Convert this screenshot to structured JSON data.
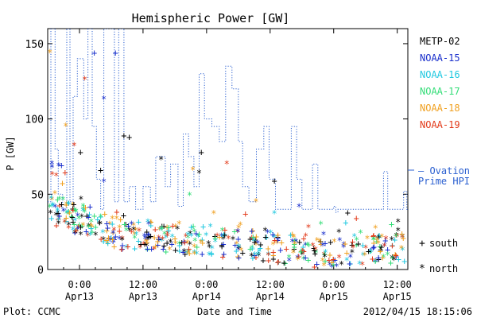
{
  "chart_data": {
    "type": "scatter",
    "title": "Hemispheric Power [GW]",
    "ylabel": "P [GW]",
    "xlabel": "Date and Time",
    "ylim": [
      0,
      160
    ],
    "yticks": [
      0,
      50,
      100,
      150
    ],
    "xlim_hours": [
      -6,
      62
    ],
    "xticks": [
      {
        "t": 0,
        "line1": "0:00",
        "line2": "Apr13"
      },
      {
        "t": 12,
        "line1": "12:00",
        "line2": "Apr13"
      },
      {
        "t": 24,
        "line1": "0:00",
        "line2": "Apr14"
      },
      {
        "t": 36,
        "line1": "12:00",
        "line2": "Apr14"
      },
      {
        "t": 48,
        "line1": "0:00",
        "line2": "Apr15"
      },
      {
        "t": 60,
        "line1": "12:00",
        "line2": "Apr15"
      }
    ],
    "series": [
      {
        "name": "METP-02",
        "color": "#000000"
      },
      {
        "name": "NOAA-15",
        "color": "#1a2fcc"
      },
      {
        "name": "NOAA-16",
        "color": "#20c8e0"
      },
      {
        "name": "NOAA-17",
        "color": "#33dd77"
      },
      {
        "name": "NOAA-18",
        "color": "#f0a020"
      },
      {
        "name": "NOAA-19",
        "color": "#e23a1a"
      }
    ],
    "ovation": {
      "label_line1": "— Ovation",
      "label_line2": "Prime HPI",
      "color": "#2a5fd0",
      "points": [
        [
          -6,
          45
        ],
        [
          -5.4,
          45
        ],
        [
          -5.4,
          160
        ],
        [
          -4.6,
          160
        ],
        [
          -4.6,
          80
        ],
        [
          -4,
          80
        ],
        [
          -4,
          50
        ],
        [
          -3.2,
          50
        ],
        [
          -3.2,
          40
        ],
        [
          -2.4,
          40
        ],
        [
          -2.4,
          160
        ],
        [
          -1.8,
          160
        ],
        [
          -1.8,
          45
        ],
        [
          -1.2,
          45
        ],
        [
          -1.2,
          115
        ],
        [
          -0.4,
          115
        ],
        [
          -0.4,
          140
        ],
        [
          0.8,
          140
        ],
        [
          0.8,
          100
        ],
        [
          1.6,
          100
        ],
        [
          1.6,
          160
        ],
        [
          2.4,
          160
        ],
        [
          2.4,
          95
        ],
        [
          3.2,
          95
        ],
        [
          3.2,
          60
        ],
        [
          4,
          60
        ],
        [
          4,
          40
        ],
        [
          4.6,
          40
        ],
        [
          4.6,
          160
        ],
        [
          6.6,
          160
        ],
        [
          6.6,
          45
        ],
        [
          7.4,
          45
        ],
        [
          7.4,
          160
        ],
        [
          8.4,
          160
        ],
        [
          8.4,
          45
        ],
        [
          9.4,
          45
        ],
        [
          9.4,
          55
        ],
        [
          10.6,
          55
        ],
        [
          10.6,
          40
        ],
        [
          12,
          40
        ],
        [
          12,
          55
        ],
        [
          13.4,
          55
        ],
        [
          13.4,
          45
        ],
        [
          14.4,
          45
        ],
        [
          14.4,
          75
        ],
        [
          16.2,
          75
        ],
        [
          16.2,
          55
        ],
        [
          17.2,
          55
        ],
        [
          17.2,
          70
        ],
        [
          18.6,
          70
        ],
        [
          18.6,
          42
        ],
        [
          19.6,
          42
        ],
        [
          19.6,
          90
        ],
        [
          20.6,
          90
        ],
        [
          20.6,
          75
        ],
        [
          21.6,
          75
        ],
        [
          21.6,
          55
        ],
        [
          22.6,
          55
        ],
        [
          22.6,
          130
        ],
        [
          23.6,
          130
        ],
        [
          23.6,
          100
        ],
        [
          25,
          100
        ],
        [
          25,
          95
        ],
        [
          26.4,
          95
        ],
        [
          26.4,
          85
        ],
        [
          27.6,
          85
        ],
        [
          27.6,
          135
        ],
        [
          28.8,
          135
        ],
        [
          28.8,
          120
        ],
        [
          30,
          120
        ],
        [
          30,
          85
        ],
        [
          30.8,
          85
        ],
        [
          30.8,
          55
        ],
        [
          32,
          55
        ],
        [
          32,
          45
        ],
        [
          33.4,
          45
        ],
        [
          33.4,
          80
        ],
        [
          34.8,
          80
        ],
        [
          34.8,
          95
        ],
        [
          35.8,
          95
        ],
        [
          35.8,
          60
        ],
        [
          37,
          60
        ],
        [
          37,
          40
        ],
        [
          40,
          40
        ],
        [
          40,
          95
        ],
        [
          41,
          95
        ],
        [
          41,
          60
        ],
        [
          42,
          60
        ],
        [
          42,
          40
        ],
        [
          44,
          40
        ],
        [
          44,
          70
        ],
        [
          45,
          70
        ],
        [
          45,
          40
        ],
        [
          48,
          40
        ],
        [
          48,
          42
        ],
        [
          48.4,
          42
        ],
        [
          48.4,
          38
        ],
        [
          48.8,
          38
        ],
        [
          48.8,
          40
        ],
        [
          57.4,
          40
        ],
        [
          57.4,
          65
        ],
        [
          58.2,
          65
        ],
        [
          58.2,
          40
        ],
        [
          61.2,
          40
        ],
        [
          61.2,
          52
        ],
        [
          61.8,
          52
        ],
        [
          61.8,
          40
        ],
        [
          62,
          40
        ]
      ]
    },
    "marker_legend": [
      {
        "symbol": "+",
        "label": "south"
      },
      {
        "symbol": "*",
        "label": "north"
      }
    ]
  },
  "footer": {
    "left": "Plot: CCMC",
    "right": "2012/04/15 18:15:06"
  }
}
